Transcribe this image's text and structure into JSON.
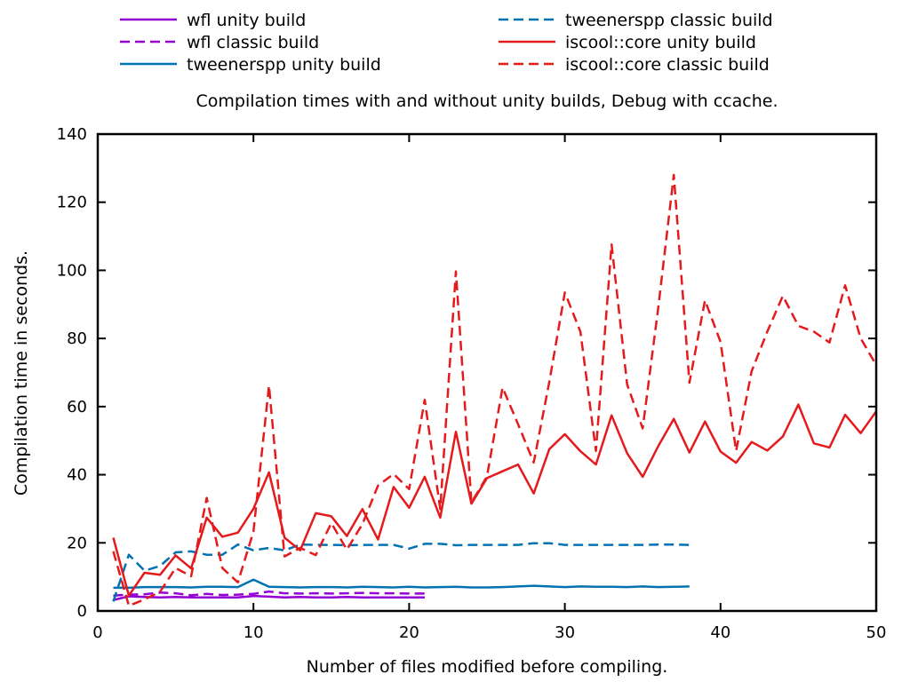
{
  "chart_data": {
    "type": "line",
    "title": "Compilation times with and without unity builds, Debug with ccache.",
    "xlabel": "Number of files modified before compiling.",
    "ylabel": "Compilation time in seconds.",
    "xlim": [
      0,
      50
    ],
    "ylim": [
      0,
      140
    ],
    "xticks": [
      0,
      10,
      20,
      30,
      40,
      50
    ],
    "yticks": [
      0,
      20,
      40,
      60,
      80,
      100,
      120,
      140
    ],
    "grid": false,
    "legend_position": "top",
    "series": [
      {
        "name": "wfl unity build",
        "color": "#9400d3",
        "dash": "solid",
        "x": [
          1,
          2,
          3,
          4,
          5,
          6,
          7,
          8,
          9,
          10,
          11,
          12,
          13,
          14,
          15,
          16,
          17,
          18,
          19,
          20,
          21
        ],
        "values": [
          3.2,
          4.3,
          4.1,
          4.0,
          4.1,
          4.0,
          4.0,
          4.0,
          4.0,
          4.4,
          4.2,
          4.0,
          4.1,
          4.0,
          4.0,
          4.1,
          4.0,
          4.0,
          4.0,
          4.0,
          4.0
        ]
      },
      {
        "name": "wfl classic build",
        "color": "#9400d3",
        "dash": "dashed",
        "x": [
          1,
          2,
          3,
          4,
          5,
          6,
          7,
          8,
          9,
          10,
          11,
          12,
          13,
          14,
          15,
          16,
          17,
          18,
          19,
          20,
          21
        ],
        "values": [
          4.5,
          4.8,
          4.9,
          5.4,
          5.2,
          4.6,
          5.0,
          4.7,
          4.8,
          5.0,
          5.7,
          5.2,
          5.1,
          5.2,
          5.1,
          5.2,
          5.3,
          5.2,
          5.2,
          5.1,
          5.1
        ]
      },
      {
        "name": "tweenerspp unity build",
        "color": "#0072b2",
        "dash": "solid",
        "x": [
          1,
          2,
          3,
          4,
          5,
          6,
          7,
          8,
          9,
          10,
          11,
          12,
          13,
          14,
          15,
          16,
          17,
          18,
          19,
          20,
          21,
          22,
          23,
          24,
          25,
          26,
          27,
          28,
          29,
          30,
          31,
          32,
          33,
          34,
          35,
          36,
          37,
          38
        ],
        "values": [
          6.8,
          6.8,
          7.0,
          7.0,
          7.0,
          6.9,
          7.1,
          7.1,
          7.0,
          9.2,
          7.1,
          7.0,
          6.9,
          7.0,
          7.0,
          6.9,
          7.1,
          7.0,
          6.9,
          7.1,
          6.9,
          7.0,
          7.1,
          6.9,
          6.9,
          7.0,
          7.2,
          7.4,
          7.2,
          7.0,
          7.2,
          7.1,
          7.1,
          7.0,
          7.2,
          7.0,
          7.1,
          7.2
        ]
      },
      {
        "name": "tweenerspp classic build",
        "color": "#0072b2",
        "dash": "dashed",
        "x": [
          1,
          2,
          3,
          4,
          5,
          6,
          7,
          8,
          9,
          10,
          11,
          12,
          13,
          14,
          15,
          16,
          17,
          18,
          19,
          20,
          21,
          22,
          23,
          24,
          25,
          26,
          27,
          28,
          29,
          30,
          31,
          32,
          33,
          34,
          35,
          36,
          37,
          38
        ],
        "values": [
          2.8,
          16.5,
          11.8,
          13.2,
          17.2,
          17.5,
          16.5,
          16.5,
          19.5,
          17.8,
          18.5,
          17.8,
          19.5,
          19.4,
          19.4,
          19.3,
          19.4,
          19.4,
          19.4,
          18.3,
          19.7,
          19.7,
          19.3,
          19.4,
          19.4,
          19.4,
          19.4,
          19.9,
          19.9,
          19.4,
          19.4,
          19.4,
          19.4,
          19.4,
          19.4,
          19.5,
          19.5,
          19.4
        ]
      },
      {
        "name": "iscool::core unity build",
        "color": "#e41a1c",
        "dash": "solid",
        "x": [
          1,
          2,
          3,
          4,
          5,
          6,
          7,
          8,
          9,
          10,
          11,
          12,
          13,
          14,
          15,
          16,
          17,
          18,
          19,
          20,
          21,
          22,
          23,
          24,
          25,
          26,
          27,
          28,
          29,
          30,
          31,
          32,
          33,
          34,
          35,
          36,
          37,
          38,
          39,
          40,
          41,
          42,
          43,
          44,
          45,
          46,
          47,
          48,
          49,
          50
        ],
        "values": [
          21.5,
          4.5,
          11.2,
          10.6,
          16.3,
          12.5,
          27.4,
          21.8,
          23.0,
          30.0,
          40.7,
          21.5,
          17.8,
          28.7,
          27.8,
          22.0,
          29.9,
          21.0,
          36.4,
          30.3,
          39.4,
          27.4,
          52.6,
          31.5,
          39.0,
          41.0,
          43.0,
          34.5,
          47.5,
          51.9,
          46.9,
          43.0,
          57.4,
          46.3,
          39.4,
          48.4,
          56.4,
          46.5,
          55.6,
          46.8,
          43.5,
          49.6,
          47.1,
          51.2,
          60.6,
          49.2,
          48.0,
          57.6,
          52.2,
          58.6
        ]
      },
      {
        "name": "iscool::core classic build",
        "color": "#e41a1c",
        "dash": "dashed",
        "x": [
          1,
          2,
          3,
          4,
          5,
          6,
          7,
          8,
          9,
          10,
          11,
          12,
          13,
          14,
          15,
          16,
          17,
          18,
          19,
          20,
          21,
          22,
          23,
          24,
          25,
          26,
          27,
          28,
          29,
          30,
          31,
          32,
          33,
          34,
          35,
          36,
          37,
          38,
          39,
          40,
          41,
          42,
          43,
          44,
          45,
          46,
          47,
          48,
          49,
          50
        ],
        "values": [
          17.5,
          1.5,
          3.4,
          5.6,
          12.6,
          10.2,
          33.2,
          12.6,
          8.4,
          23.3,
          66.2,
          16.0,
          18.5,
          16.4,
          25.8,
          18.0,
          25.5,
          36.8,
          40.2,
          35.8,
          62.0,
          29.9,
          99.7,
          31.8,
          39.5,
          65.6,
          54.8,
          43.6,
          67.2,
          93.5,
          82.0,
          47.0,
          107.6,
          66.5,
          53.6,
          89.0,
          128.0,
          67.0,
          91.2,
          79.0,
          47.0,
          70.4,
          82.0,
          92.5,
          83.7,
          82.0,
          78.8,
          95.6,
          80.0,
          72.2
        ]
      }
    ]
  }
}
